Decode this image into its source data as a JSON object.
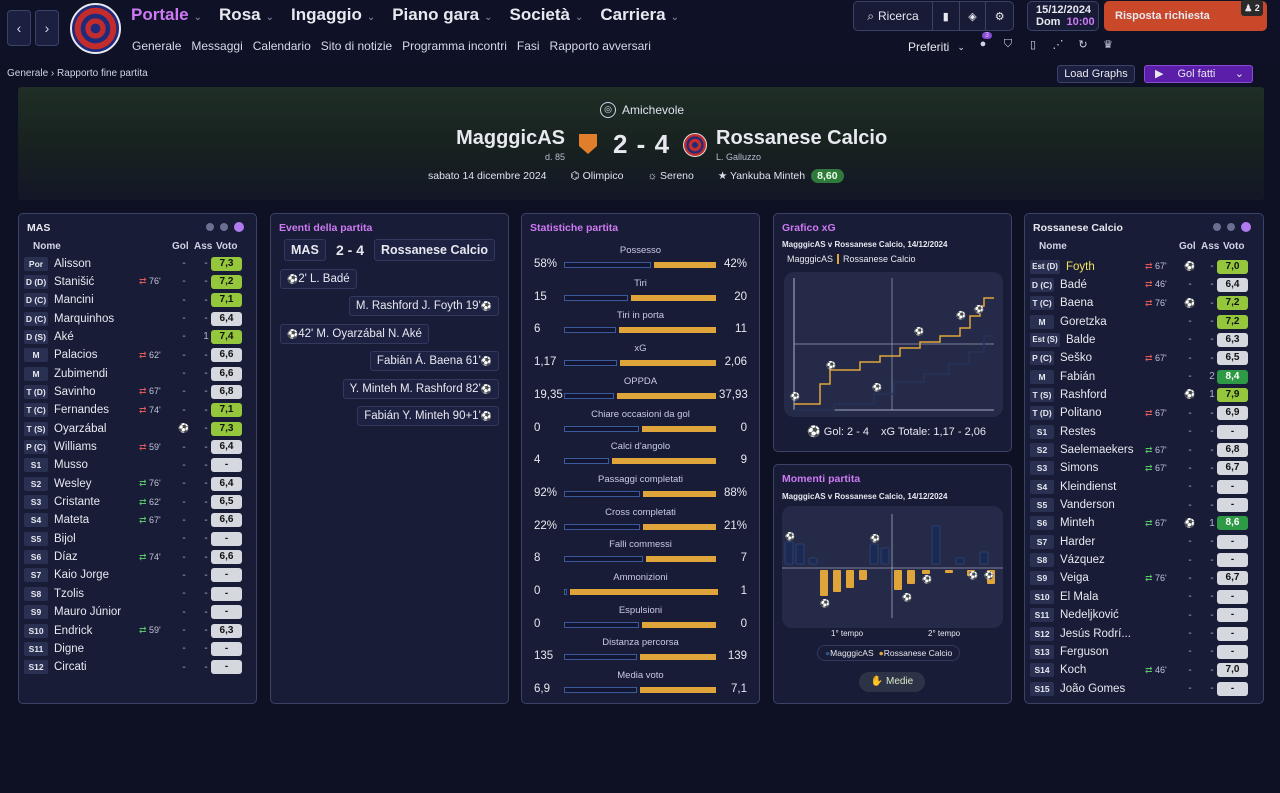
{
  "nav": {
    "back": "‹",
    "forward": "›"
  },
  "menu": [
    {
      "label": "Portale",
      "active": true
    },
    {
      "label": "Rosa"
    },
    {
      "label": "Ingaggio"
    },
    {
      "label": "Piano gara"
    },
    {
      "label": "Società"
    },
    {
      "label": "Carriera"
    }
  ],
  "submenu": [
    "Generale",
    "Messaggi",
    "Calendario",
    "Sito di notizie",
    "Programma incontri",
    "Fasi",
    "Rapporto avversari"
  ],
  "tools": {
    "search": "Ricerca"
  },
  "date": {
    "date": "15/12/2024",
    "day": "Dom",
    "time": "10:00"
  },
  "risposta": {
    "label": "Risposta richiesta",
    "badge": "2"
  },
  "preferiti": {
    "label": "Preferiti",
    "badge": "3"
  },
  "breadcrumb": {
    "root": "Generale",
    "current": "Rapporto fine partita"
  },
  "load_graphs": "Load Graphs",
  "gol_fatti": "Gol fatti",
  "match": {
    "competition": "Amichevole",
    "home": "MagggicAS",
    "home_mgr": "d. 85",
    "score": "2 - 4",
    "away": "Rossanese Calcio",
    "away_mgr": "L. Galluzzo",
    "date": "sabato 14 dicembre 2024",
    "stadium": "Olimpico",
    "weather": "Sereno",
    "mom": "Yankuba Minteh",
    "mom_rating": "8,60"
  },
  "home_panel": {
    "title": "MAS",
    "headers": {
      "name": "Nome",
      "gol": "Gol",
      "ass": "Ass",
      "voto": "Voto"
    },
    "players": [
      {
        "pos": "Por",
        "name": "Alisson",
        "sub": "",
        "gol": "-",
        "ass": "-",
        "voto": "7,3",
        "c": "g"
      },
      {
        "pos": "D (D)",
        "name": "Stanišić",
        "sub": "76'",
        "so": "out",
        "gol": "-",
        "ass": "-",
        "voto": "7,2",
        "c": "g"
      },
      {
        "pos": "D (C)",
        "name": "Mancini",
        "sub": "",
        "gol": "-",
        "ass": "-",
        "voto": "7,1",
        "c": "g"
      },
      {
        "pos": "D (C)",
        "name": "Marquinhos",
        "sub": "",
        "gol": "-",
        "ass": "-",
        "voto": "6,4",
        "c": ""
      },
      {
        "pos": "D (S)",
        "name": "Aké",
        "sub": "",
        "gol": "-",
        "ass": "1",
        "voto": "7,4",
        "c": "g"
      },
      {
        "pos": "M",
        "name": "Palacios",
        "sub": "62'",
        "so": "out",
        "gol": "-",
        "ass": "-",
        "voto": "6,6",
        "c": ""
      },
      {
        "pos": "M",
        "name": "Zubimendi",
        "sub": "",
        "gol": "-",
        "ass": "-",
        "voto": "6,6",
        "c": ""
      },
      {
        "pos": "T (D)",
        "name": "Savinho",
        "sub": "67'",
        "so": "out",
        "gol": "-",
        "ass": "-",
        "voto": "6,8",
        "c": ""
      },
      {
        "pos": "T (C)",
        "name": "Fernandes",
        "sub": "74'",
        "so": "out",
        "gol": "-",
        "ass": "-",
        "voto": "7,1",
        "c": "g"
      },
      {
        "pos": "T (S)",
        "name": "Oyarzábal",
        "sub": "",
        "ball": true,
        "gol": "1",
        "ass": "-",
        "voto": "7,3",
        "c": "g"
      },
      {
        "pos": "P (C)",
        "name": "Williams",
        "sub": "59'",
        "so": "out",
        "gol": "-",
        "ass": "-",
        "voto": "6,4",
        "c": ""
      },
      {
        "pos": "S1",
        "name": "Musso",
        "sub": "",
        "gol": "-",
        "ass": "-",
        "voto": "-",
        "c": ""
      },
      {
        "pos": "S2",
        "name": "Wesley",
        "sub": "76'",
        "so": "in",
        "gol": "-",
        "ass": "-",
        "voto": "6,4",
        "c": ""
      },
      {
        "pos": "S3",
        "name": "Cristante",
        "sub": "62'",
        "so": "in",
        "gol": "-",
        "ass": "-",
        "voto": "6,5",
        "c": ""
      },
      {
        "pos": "S4",
        "name": "Mateta",
        "sub": "67'",
        "so": "in",
        "gol": "-",
        "ass": "-",
        "voto": "6,6",
        "c": ""
      },
      {
        "pos": "S5",
        "name": "Bijol",
        "sub": "",
        "gol": "-",
        "ass": "-",
        "voto": "-",
        "c": ""
      },
      {
        "pos": "S6",
        "name": "Díaz",
        "sub": "74'",
        "so": "in",
        "gol": "-",
        "ass": "-",
        "voto": "6,6",
        "c": ""
      },
      {
        "pos": "S7",
        "name": "Kaio Jorge",
        "sub": "",
        "gol": "-",
        "ass": "-",
        "voto": "-",
        "c": ""
      },
      {
        "pos": "S8",
        "name": "Tzolis",
        "sub": "",
        "gol": "-",
        "ass": "-",
        "voto": "-",
        "c": ""
      },
      {
        "pos": "S9",
        "name": "Mauro Júnior",
        "sub": "",
        "gol": "-",
        "ass": "-",
        "voto": "-",
        "c": ""
      },
      {
        "pos": "S10",
        "name": "Endrick",
        "sub": "59'",
        "so": "in",
        "gol": "-",
        "ass": "-",
        "voto": "6,3",
        "c": ""
      },
      {
        "pos": "S11",
        "name": "Digne",
        "sub": "",
        "gol": "-",
        "ass": "-",
        "voto": "-",
        "c": ""
      },
      {
        "pos": "S12",
        "name": "Circati",
        "sub": "",
        "gol": "-",
        "ass": "-",
        "voto": "-",
        "c": ""
      }
    ]
  },
  "events_panel": {
    "title": "Eventi della partita",
    "home": "MAS",
    "score": "2 - 4",
    "away": "Rossanese Calcio",
    "events": [
      {
        "side": "L",
        "text": "2' L. Badé",
        "type": "og"
      },
      {
        "side": "R",
        "text": "M. Rashford J. Foyth 19'"
      },
      {
        "side": "L",
        "text": "42' M. Oyarzábal N. Aké"
      },
      {
        "side": "R",
        "text": "Fabián Á. Baena 61'"
      },
      {
        "side": "R",
        "text": "Y. Minteh M. Rashford 82'"
      },
      {
        "side": "R",
        "text": "Fabián Y. Minteh 90+1'"
      }
    ]
  },
  "stats_panel": {
    "title": "Statistiche partita",
    "stats": [
      {
        "label": "Possesso",
        "l": "58%",
        "r": "42%",
        "lp": 58,
        "rp": 42
      },
      {
        "label": "Tiri",
        "l": "15",
        "r": "20",
        "lp": 43,
        "rp": 57
      },
      {
        "label": "Tiri in porta",
        "l": "6",
        "r": "11",
        "lp": 35,
        "rp": 65
      },
      {
        "label": "xG",
        "l": "1,17",
        "r": "2,06",
        "lp": 36,
        "rp": 64
      },
      {
        "label": "OPPDA",
        "l": "19,35",
        "r": "37,93",
        "lp": 34,
        "rp": 66
      },
      {
        "label": "Chiare occasioni da gol",
        "l": "0",
        "r": "0",
        "lp": 50,
        "rp": 50
      },
      {
        "label": "Calci d'angolo",
        "l": "4",
        "r": "9",
        "lp": 31,
        "rp": 69
      },
      {
        "label": "Passaggi completati",
        "l": "92%",
        "r": "88%",
        "lp": 51,
        "rp": 49
      },
      {
        "label": "Cross completati",
        "l": "22%",
        "r": "21%",
        "lp": 51,
        "rp": 49
      },
      {
        "label": "Falli commessi",
        "l": "8",
        "r": "7",
        "lp": 53,
        "rp": 47
      },
      {
        "label": "Ammonizioni",
        "l": "0",
        "r": "1",
        "lp": 2,
        "rp": 98
      },
      {
        "label": "Espulsioni",
        "l": "0",
        "r": "0",
        "lp": 50,
        "rp": 50
      },
      {
        "label": "Distanza percorsa",
        "l": "135",
        "r": "139",
        "lp": 49,
        "rp": 51
      },
      {
        "label": "Media voto",
        "l": "6,9",
        "r": "7,1",
        "lp": 49,
        "rp": 51
      }
    ]
  },
  "xg_panel": {
    "title": "Grafico xG",
    "subtitle": "MagggicAS v Rossanese Calcio, 14/12/2024",
    "legend_home": "MagggicAS",
    "legend_away": "Rossanese Calcio",
    "footer_goals": "Gol: 2 - 4",
    "footer_xg": "xG Totale: 1,17 - 2,06"
  },
  "momenti_panel": {
    "title": "Momenti partita",
    "subtitle": "MagggicAS v Rossanese Calcio, 14/12/2024",
    "first_half": "1° tempo",
    "second_half": "2° tempo",
    "legend_home": "MagggicAS",
    "legend_away": "Rossanese Calcio",
    "medie": "Medie"
  },
  "away_panel": {
    "title": "Rossanese Calcio",
    "headers": {
      "name": "Nome",
      "gol": "Gol",
      "ass": "Ass",
      "voto": "Voto"
    },
    "players": [
      {
        "pos": "Est (D)",
        "name": "Foyth",
        "sub": "67'",
        "so": "out",
        "ball": true,
        "gol": "",
        "ass": "-",
        "voto": "7,0",
        "c": "g",
        "hl": true
      },
      {
        "pos": "D (C)",
        "name": "Badé",
        "sub": "46'",
        "so": "out",
        "gol": "-",
        "ass": "-",
        "voto": "6,4",
        "c": ""
      },
      {
        "pos": "T (C)",
        "name": "Baena",
        "sub": "76'",
        "so": "out",
        "ball": true,
        "gol": "",
        "ass": "-",
        "voto": "7,2",
        "c": "g"
      },
      {
        "pos": "M",
        "name": "Goretzka",
        "sub": "",
        "gol": "-",
        "ass": "-",
        "voto": "7,2",
        "c": "g"
      },
      {
        "pos": "Est (S)",
        "name": "Balde",
        "sub": "",
        "gol": "-",
        "ass": "-",
        "voto": "6,3",
        "c": ""
      },
      {
        "pos": "P (C)",
        "name": "Šeško",
        "sub": "67'",
        "so": "out",
        "gol": "-",
        "ass": "-",
        "voto": "6,5",
        "c": ""
      },
      {
        "pos": "M",
        "name": "Fabián",
        "sub": "",
        "gol": "-",
        "ass": "2",
        "voto": "8,4",
        "c": "dg"
      },
      {
        "pos": "T (S)",
        "name": "Rashford",
        "sub": "",
        "ball": true,
        "gol": "",
        "ass": "1",
        "voto": "7,9",
        "c": "g"
      },
      {
        "pos": "T (D)",
        "name": "Politano",
        "sub": "67'",
        "so": "out",
        "gol": "-",
        "ass": "-",
        "voto": "6,9",
        "c": ""
      },
      {
        "pos": "S1",
        "name": "Restes",
        "sub": "",
        "gol": "-",
        "ass": "-",
        "voto": "-",
        "c": ""
      },
      {
        "pos": "S2",
        "name": "Saelemaekers",
        "sub": "67'",
        "so": "in",
        "gol": "-",
        "ass": "-",
        "voto": "6,8",
        "c": ""
      },
      {
        "pos": "S3",
        "name": "Simons",
        "sub": "67'",
        "so": "in",
        "gol": "-",
        "ass": "-",
        "voto": "6,7",
        "c": ""
      },
      {
        "pos": "S4",
        "name": "Kleindienst",
        "sub": "",
        "gol": "-",
        "ass": "-",
        "voto": "-",
        "c": ""
      },
      {
        "pos": "S5",
        "name": "Vanderson",
        "sub": "",
        "gol": "-",
        "ass": "-",
        "voto": "-",
        "c": ""
      },
      {
        "pos": "S6",
        "name": "Minteh",
        "sub": "67'",
        "so": "in",
        "ball": true,
        "gol": "",
        "ass": "1",
        "voto": "8,6",
        "c": "dg"
      },
      {
        "pos": "S7",
        "name": "Harder",
        "sub": "",
        "gol": "-",
        "ass": "-",
        "voto": "-",
        "c": ""
      },
      {
        "pos": "S8",
        "name": "Vázquez",
        "sub": "",
        "gol": "-",
        "ass": "-",
        "voto": "-",
        "c": ""
      },
      {
        "pos": "S9",
        "name": "Veiga",
        "sub": "76'",
        "so": "in",
        "gol": "-",
        "ass": "-",
        "voto": "6,7",
        "c": ""
      },
      {
        "pos": "S10",
        "name": "El Mala",
        "sub": "",
        "gol": "-",
        "ass": "-",
        "voto": "-",
        "c": ""
      },
      {
        "pos": "S11",
        "name": "Nedeljković",
        "sub": "",
        "gol": "-",
        "ass": "-",
        "voto": "-",
        "c": ""
      },
      {
        "pos": "S12",
        "name": "Jesús Rodrí...",
        "sub": "",
        "gol": "-",
        "ass": "-",
        "voto": "-",
        "c": ""
      },
      {
        "pos": "S13",
        "name": "Ferguson",
        "sub": "",
        "gol": "-",
        "ass": "-",
        "voto": "-",
        "c": ""
      },
      {
        "pos": "S14",
        "name": "Koch",
        "sub": "46'",
        "so": "in",
        "gol": "-",
        "ass": "-",
        "voto": "7,0",
        "c": ""
      },
      {
        "pos": "S15",
        "name": "João Gomes",
        "sub": "",
        "gol": "-",
        "ass": "-",
        "voto": "-",
        "c": ""
      }
    ]
  }
}
